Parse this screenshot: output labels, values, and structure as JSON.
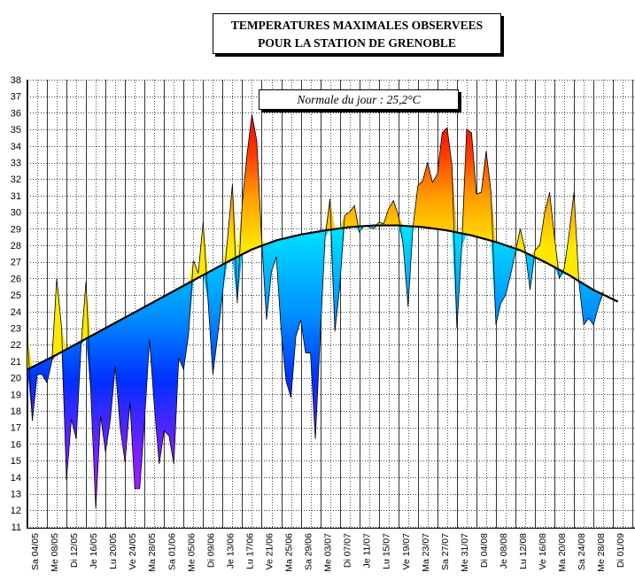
{
  "chart_data": {
    "type": "area",
    "title_line1": "TEMPERATURES MAXIMALES OBSERVEES",
    "title_line2": "POUR LA STATION DE GRENOBLE",
    "annotation": "Normale du jour : 25,2°C",
    "ylim": [
      11,
      38
    ],
    "y_ticks": [
      11,
      12,
      13,
      14,
      15,
      16,
      17,
      18,
      19,
      20,
      21,
      22,
      23,
      24,
      25,
      26,
      27,
      28,
      29,
      30,
      31,
      32,
      33,
      34,
      35,
      36,
      37,
      38
    ],
    "x_tick_labels": [
      "Sa 04/05",
      "Me 08/05",
      "Di 12/05",
      "Je 16/05",
      "Lu 20/05",
      "Ve 24/05",
      "Ma 28/05",
      "Sa 01/06",
      "Me 05/06",
      "Di 09/06",
      "Je 13/06",
      "Lu 17/06",
      "Ve 21/06",
      "Ma 25/06",
      "Sa 29/06",
      "Me 03/07",
      "Di 07/07",
      "Je 11/07",
      "Lu 15/07",
      "Ve 19/07",
      "Ma 23/07",
      "Sa 27/07",
      "Me 31/07",
      "Di 04/08",
      "Je 08/08",
      "Lu 12/08",
      "Ve 16/08",
      "Ma 20/08",
      "Sa 24/08",
      "Me 28/08",
      "Di 01/09"
    ],
    "observed_max": [
      22.5,
      17.4,
      20.2,
      20.2,
      19.7,
      21.0,
      26.0,
      23.0,
      13.8,
      17.5,
      16.3,
      22.0,
      25.8,
      19.0,
      12.1,
      17.7,
      15.5,
      17.5,
      20.7,
      17.0,
      14.9,
      18.5,
      13.3,
      13.3,
      17.4,
      22.3,
      18.3,
      14.8,
      16.8,
      16.5,
      14.8,
      21.2,
      20.5,
      22.6,
      27.1,
      26.3,
      29.4,
      24.7,
      20.2,
      22.6,
      25.1,
      28.4,
      31.7,
      24.5,
      30.5,
      33.5,
      35.9,
      34.3,
      28.3,
      23.5,
      26.4,
      27.3,
      22.8,
      19.8,
      18.8,
      22.5,
      23.5,
      21.5,
      21.5,
      16.3,
      22.5,
      28.5,
      30.8,
      22.8,
      25.5,
      29.8,
      30.0,
      30.4,
      28.8,
      29.2,
      29.1,
      29.0,
      29.4,
      29.3,
      30.2,
      30.7,
      29.8,
      28.0,
      24.3,
      29.1,
      31.6,
      31.9,
      33.0,
      31.8,
      32.3,
      34.8,
      35.1,
      32.8,
      23.0,
      27.9,
      35.0,
      34.8,
      31.1,
      31.2,
      33.7,
      31.2,
      23.2,
      24.5,
      25.0,
      26.2,
      27.6,
      29.0,
      27.7,
      25.3,
      27.7,
      28.0,
      30.0,
      31.2,
      28.5,
      26.0,
      26.6,
      28.7,
      31.2,
      25.8,
      23.2,
      23.6,
      23.2,
      24.3,
      25.2
    ],
    "normal_curve": [
      20.5,
      20.65,
      20.8,
      20.95,
      21.1,
      21.25,
      21.4,
      21.56,
      21.72,
      21.88,
      22.04,
      22.2,
      22.36,
      22.52,
      22.68,
      22.84,
      23.0,
      23.16,
      23.32,
      23.48,
      23.64,
      23.8,
      23.96,
      24.12,
      24.28,
      24.44,
      24.6,
      24.76,
      24.92,
      25.08,
      25.24,
      25.4,
      25.56,
      25.72,
      25.88,
      26.04,
      26.2,
      26.36,
      26.52,
      26.68,
      26.84,
      27.0,
      27.15,
      27.3,
      27.45,
      27.6,
      27.75,
      27.86,
      27.97,
      28.08,
      28.19,
      28.3,
      28.37,
      28.44,
      28.51,
      28.58,
      28.65,
      28.7,
      28.75,
      28.8,
      28.85,
      28.9,
      28.94,
      28.98,
      29.02,
      29.06,
      29.1,
      29.12,
      29.14,
      29.16,
      29.18,
      29.2,
      29.2,
      29.2,
      29.2,
      29.2,
      29.2,
      29.18,
      29.16,
      29.14,
      29.12,
      29.1,
      29.06,
      29.02,
      28.98,
      28.94,
      28.9,
      28.84,
      28.78,
      28.72,
      28.66,
      28.6,
      28.52,
      28.44,
      28.36,
      28.28,
      28.2,
      28.1,
      28.0,
      27.9,
      27.8,
      27.7,
      27.56,
      27.42,
      27.28,
      27.14,
      27.0,
      26.84,
      26.68,
      26.52,
      26.36,
      26.2,
      26.02,
      25.84,
      25.66,
      25.48,
      25.3,
      25.16,
      25.02,
      24.88,
      24.74,
      24.6
    ]
  }
}
